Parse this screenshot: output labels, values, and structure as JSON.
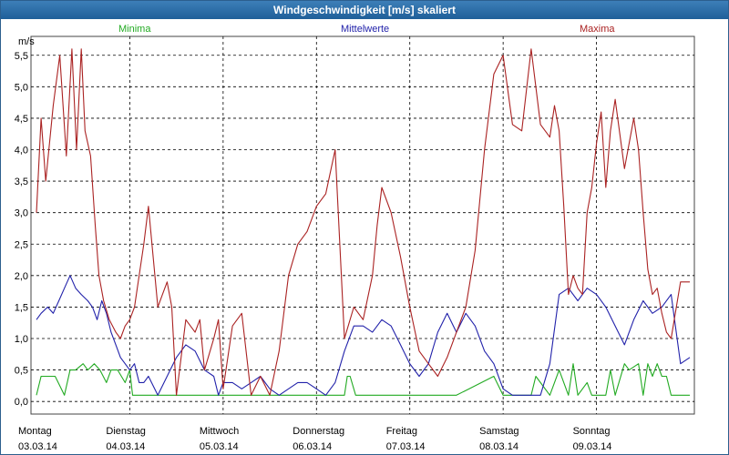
{
  "window": {
    "title": "Windgeschwindigkeit [m/s] skaliert"
  },
  "colors": {
    "minima": "#22aa22",
    "mittelwerte": "#2222aa",
    "maxima": "#aa2222",
    "grid": "#000000"
  },
  "chart_data": {
    "type": "line",
    "title": "Windgeschwindigkeit [m/s] skaliert",
    "ylabel": "m/s",
    "ylim": [
      -0.2,
      5.8
    ],
    "yticks": [
      "0,0",
      "0,5",
      "1,0",
      "1,5",
      "2,0",
      "2,5",
      "3,0",
      "3,5",
      "4,0",
      "4,5",
      "5,0",
      "5,5"
    ],
    "grid": true,
    "legend_placement": "top",
    "days": [
      {
        "name": "Montag",
        "date": "03.03.14"
      },
      {
        "name": "Dienstag",
        "date": "04.03.14"
      },
      {
        "name": "Mittwoch",
        "date": "05.03.14"
      },
      {
        "name": "Donnerstag",
        "date": "06.03.14"
      },
      {
        "name": "Freitag",
        "date": "07.03.14"
      },
      {
        "name": "Samstag",
        "date": "08.03.14"
      },
      {
        "name": "Sonntag",
        "date": "09.03.14"
      }
    ],
    "x_days_span": [
      0,
      7.0
    ],
    "series": [
      {
        "name": "Minima",
        "key": "minima",
        "x": [
          0,
          0.05,
          0.2,
          0.3,
          0.36,
          0.42,
          0.5,
          0.55,
          0.62,
          0.68,
          0.75,
          0.8,
          0.87,
          0.95,
          1.0,
          1.03,
          1.2,
          1.5,
          2.0,
          2.5,
          2.8,
          3.0,
          3.3,
          3.33,
          3.36,
          3.42,
          3.5,
          4.0,
          4.5,
          4.9,
          5.0,
          5.3,
          5.35,
          5.5,
          5.6,
          5.7,
          5.75,
          5.8,
          5.9,
          5.95,
          6.05,
          6.1,
          6.15,
          6.2,
          6.3,
          6.35,
          6.45,
          6.5,
          6.55,
          6.6,
          6.65,
          6.7,
          6.75,
          6.8,
          7.0
        ],
        "values": [
          0.1,
          0.4,
          0.4,
          0.1,
          0.5,
          0.5,
          0.6,
          0.5,
          0.6,
          0.5,
          0.3,
          0.5,
          0.5,
          0.3,
          0.5,
          0.1,
          0.1,
          0.1,
          0.1,
          0.1,
          0.1,
          0.1,
          0.1,
          0.4,
          0.4,
          0.1,
          0.1,
          0.1,
          0.1,
          0.4,
          0.1,
          0.1,
          0.4,
          0.1,
          0.5,
          0.1,
          0.6,
          0.1,
          0.3,
          0.1,
          0.1,
          0.1,
          0.5,
          0.1,
          0.6,
          0.5,
          0.6,
          0.1,
          0.6,
          0.4,
          0.6,
          0.4,
          0.4,
          0.1,
          0.1
        ]
      },
      {
        "name": "Mittelwerte",
        "key": "mittelwerte",
        "x": [
          0,
          0.05,
          0.12,
          0.18,
          0.24,
          0.3,
          0.36,
          0.42,
          0.48,
          0.55,
          0.6,
          0.65,
          0.7,
          0.75,
          0.8,
          0.85,
          0.9,
          0.95,
          1.0,
          1.05,
          1.1,
          1.15,
          1.2,
          1.3,
          1.4,
          1.5,
          1.6,
          1.7,
          1.8,
          1.9,
          1.95,
          2.0,
          2.1,
          2.2,
          2.3,
          2.4,
          2.5,
          2.6,
          2.7,
          2.8,
          2.9,
          3.0,
          3.1,
          3.2,
          3.3,
          3.4,
          3.5,
          3.6,
          3.7,
          3.8,
          3.9,
          4.0,
          4.1,
          4.2,
          4.3,
          4.4,
          4.5,
          4.6,
          4.7,
          4.8,
          4.9,
          5.0,
          5.1,
          5.2,
          5.3,
          5.4,
          5.5,
          5.6,
          5.7,
          5.8,
          5.9,
          6.0,
          6.1,
          6.2,
          6.3,
          6.4,
          6.5,
          6.6,
          6.7,
          6.8,
          6.9,
          7.0
        ],
        "values": [
          1.3,
          1.4,
          1.5,
          1.4,
          1.6,
          1.8,
          2.0,
          1.8,
          1.7,
          1.6,
          1.5,
          1.3,
          1.6,
          1.4,
          1.1,
          0.9,
          0.7,
          0.6,
          0.5,
          0.6,
          0.3,
          0.3,
          0.4,
          0.1,
          0.4,
          0.7,
          0.9,
          0.8,
          0.5,
          0.4,
          0.1,
          0.3,
          0.3,
          0.2,
          0.3,
          0.4,
          0.2,
          0.1,
          0.2,
          0.3,
          0.3,
          0.2,
          0.1,
          0.3,
          0.8,
          1.2,
          1.2,
          1.1,
          1.3,
          1.2,
          0.9,
          0.6,
          0.4,
          0.6,
          1.1,
          1.4,
          1.1,
          1.4,
          1.2,
          0.8,
          0.6,
          0.2,
          0.1,
          0.1,
          0.1,
          0.1,
          0.6,
          1.7,
          1.8,
          1.6,
          1.8,
          1.7,
          1.5,
          1.2,
          0.9,
          1.3,
          1.6,
          1.4,
          1.5,
          1.7,
          0.6,
          0.7
        ]
      },
      {
        "name": "Maxima",
        "key": "maxima",
        "x": [
          0,
          0.05,
          0.1,
          0.18,
          0.25,
          0.32,
          0.38,
          0.43,
          0.48,
          0.52,
          0.58,
          0.63,
          0.67,
          0.72,
          0.78,
          0.85,
          0.9,
          0.95,
          1.0,
          1.05,
          1.1,
          1.15,
          1.2,
          1.3,
          1.35,
          1.4,
          1.45,
          1.5,
          1.6,
          1.7,
          1.75,
          1.8,
          1.9,
          1.95,
          2.0,
          2.1,
          2.2,
          2.3,
          2.4,
          2.5,
          2.6,
          2.7,
          2.8,
          2.9,
          3.0,
          3.1,
          3.2,
          3.3,
          3.4,
          3.5,
          3.6,
          3.65,
          3.7,
          3.8,
          3.9,
          4.0,
          4.1,
          4.2,
          4.3,
          4.4,
          4.5,
          4.6,
          4.7,
          4.8,
          4.9,
          5.0,
          5.1,
          5.2,
          5.3,
          5.4,
          5.5,
          5.55,
          5.6,
          5.65,
          5.7,
          5.75,
          5.8,
          5.85,
          5.9,
          5.95,
          6.0,
          6.05,
          6.1,
          6.15,
          6.2,
          6.3,
          6.4,
          6.45,
          6.5,
          6.55,
          6.6,
          6.65,
          6.7,
          6.75,
          6.8,
          6.9,
          7.0
        ],
        "values": [
          3.0,
          4.5,
          3.5,
          4.7,
          5.5,
          3.9,
          5.6,
          4.0,
          5.6,
          4.3,
          3.9,
          2.8,
          2.0,
          1.6,
          1.3,
          1.1,
          1.0,
          1.2,
          1.3,
          1.5,
          2.0,
          2.5,
          3.1,
          1.5,
          1.7,
          1.9,
          1.5,
          0.1,
          1.3,
          1.1,
          1.3,
          0.5,
          1.0,
          1.3,
          0.2,
          1.2,
          1.4,
          0.1,
          0.4,
          0.1,
          0.8,
          2.0,
          2.5,
          2.7,
          3.1,
          3.3,
          4.0,
          1.0,
          1.5,
          1.3,
          2.0,
          2.8,
          3.4,
          3.0,
          2.3,
          1.5,
          0.8,
          0.6,
          0.4,
          0.7,
          1.1,
          1.5,
          2.4,
          4.0,
          5.2,
          5.5,
          4.4,
          4.3,
          5.6,
          4.4,
          4.2,
          4.7,
          4.3,
          3.1,
          1.7,
          2.0,
          1.8,
          1.7,
          3.0,
          3.4,
          4.1,
          4.6,
          3.4,
          4.3,
          4.8,
          3.7,
          4.5,
          4.0,
          3.0,
          2.1,
          1.7,
          1.8,
          1.4,
          1.1,
          1.0,
          1.9,
          1.9
        ]
      }
    ]
  }
}
